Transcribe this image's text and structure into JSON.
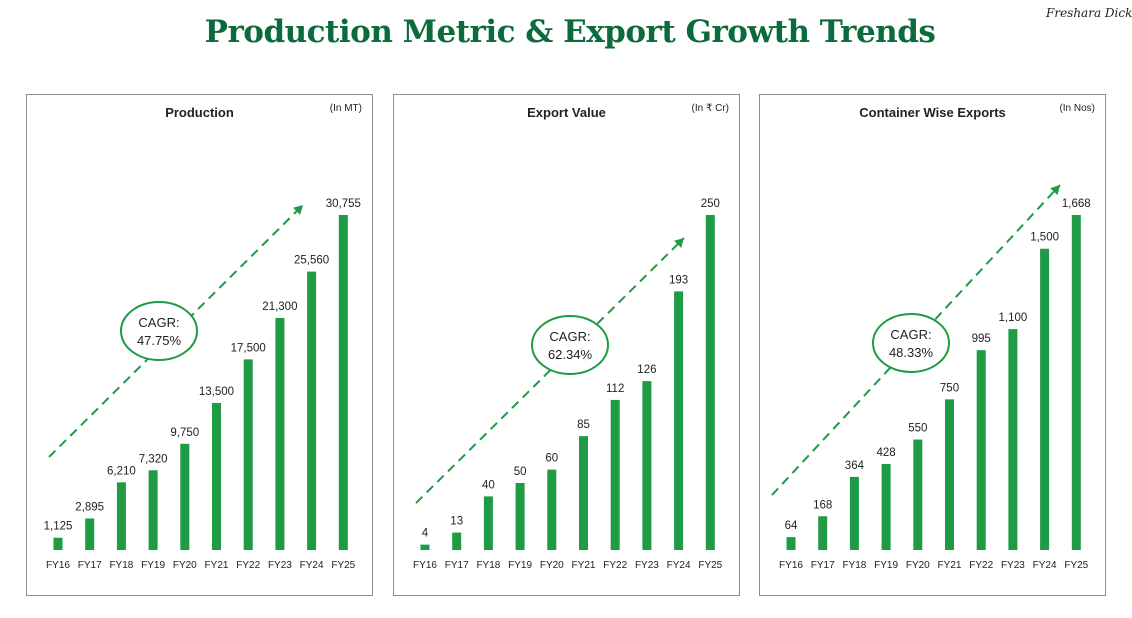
{
  "page": {
    "title": "Production Metric & Export Growth Trends",
    "logo_text": "Freshara Dickl.",
    "accent_color": "#0c6b3d",
    "bar_color": "#1f9a45"
  },
  "chart_data": [
    {
      "type": "bar",
      "title": "Production",
      "unit": "(In MT)",
      "categories": [
        "FY16",
        "FY17",
        "FY18",
        "FY19",
        "FY20",
        "FY21",
        "FY22",
        "FY23",
        "FY24",
        "FY25"
      ],
      "values": [
        1125,
        2895,
        6210,
        7320,
        9750,
        13500,
        17500,
        21300,
        25560,
        30755
      ],
      "value_labels": [
        "1,125",
        "2,895",
        "6,210",
        "7,320",
        "9,750",
        "13,500",
        "17,500",
        "21,300",
        "25,560",
        "30,755"
      ],
      "annotation": {
        "label": "CAGR:",
        "value": "47.75%"
      },
      "grid": false
    },
    {
      "type": "bar",
      "title": "Export Value",
      "unit": "(In ₹ Cr)",
      "categories": [
        "FY16",
        "FY17",
        "FY18",
        "FY19",
        "FY20",
        "FY21",
        "FY22",
        "FY23",
        "FY24",
        "FY25"
      ],
      "values": [
        4,
        13,
        40,
        50,
        60,
        85,
        112,
        126,
        193,
        250
      ],
      "value_labels": [
        "4",
        "13",
        "40",
        "50",
        "60",
        "85",
        "112",
        "126",
        "193",
        "250"
      ],
      "annotation": {
        "label": "CAGR:",
        "value": "62.34%"
      },
      "grid": false
    },
    {
      "type": "bar",
      "title": "Container Wise Exports",
      "unit": "(In Nos)",
      "categories": [
        "FY16",
        "FY17",
        "FY18",
        "FY19",
        "FY20",
        "FY21",
        "FY22",
        "FY23",
        "FY24",
        "FY25"
      ],
      "values": [
        64,
        168,
        364,
        428,
        550,
        750,
        995,
        1100,
        1500,
        1668
      ],
      "value_labels": [
        "64",
        "168",
        "364",
        "428",
        "550",
        "750",
        "995",
        "1,100",
        "1,500",
        "1,668"
      ],
      "annotation": {
        "label": "CAGR:",
        "value": "48.33%"
      },
      "grid": false
    }
  ]
}
